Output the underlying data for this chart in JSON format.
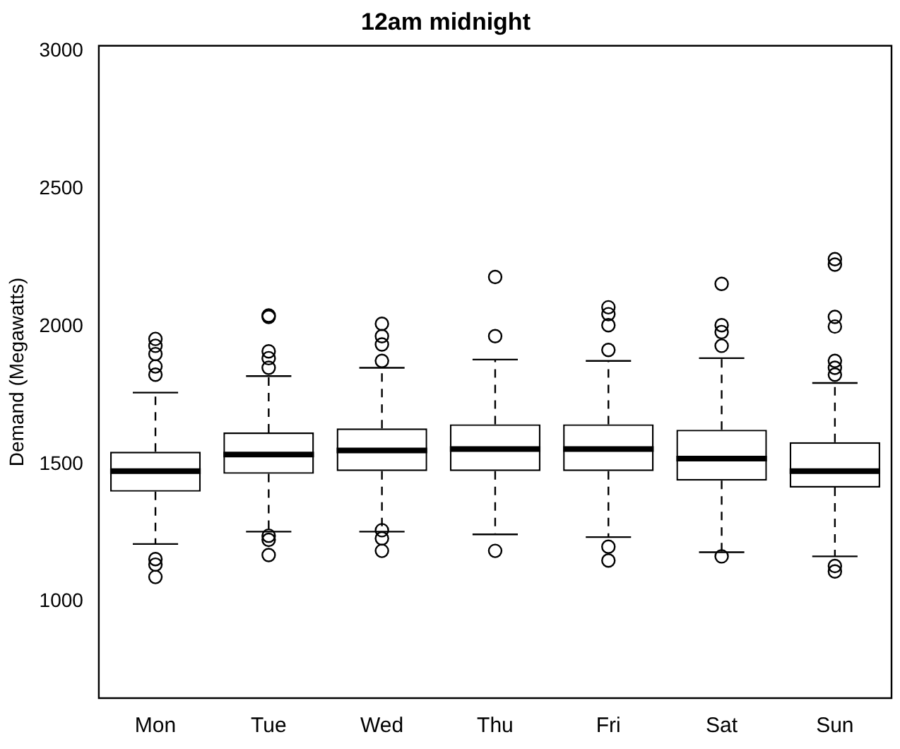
{
  "chart_data": {
    "type": "box",
    "title": "12am midnight",
    "ylabel": "Demand (Megawatts)",
    "categories": [
      "Mon",
      "Tue",
      "Wed",
      "Thu",
      "Fri",
      "Sat",
      "Sun"
    ],
    "ylim": [
      650,
      3020
    ],
    "yticks": [
      1000,
      1500,
      2000,
      2500,
      3000
    ],
    "grid": false,
    "legend": false,
    "color": "#000000",
    "boxes": [
      {
        "low": 1210,
        "q1": 1400,
        "median": 1475,
        "q3": 1545,
        "high": 1760,
        "outliers": [
          1955,
          1930,
          1900,
          1855,
          1825,
          1155,
          1135,
          1090
        ]
      },
      {
        "low": 1255,
        "q1": 1465,
        "median": 1535,
        "q3": 1615,
        "high": 1820,
        "outliers": [
          2040,
          2035,
          1910,
          1885,
          1850,
          1240,
          1225,
          1170
        ]
      },
      {
        "low": 1255,
        "q1": 1475,
        "median": 1550,
        "q3": 1630,
        "high": 1850,
        "outliers": [
          2010,
          1965,
          1935,
          1875,
          1260,
          1230,
          1185
        ]
      },
      {
        "low": 1245,
        "q1": 1475,
        "median": 1555,
        "q3": 1645,
        "high": 1880,
        "outliers": [
          2180,
          1965,
          1185
        ]
      },
      {
        "low": 1235,
        "q1": 1475,
        "median": 1555,
        "q3": 1645,
        "high": 1875,
        "outliers": [
          2070,
          2045,
          2005,
          1915,
          1200,
          1150
        ]
      },
      {
        "low": 1180,
        "q1": 1440,
        "median": 1520,
        "q3": 1625,
        "high": 1885,
        "outliers": [
          2155,
          2005,
          1980,
          1930,
          1165
        ]
      },
      {
        "low": 1165,
        "q1": 1415,
        "median": 1475,
        "q3": 1580,
        "high": 1795,
        "outliers": [
          2245,
          2225,
          2035,
          2000,
          1875,
          1850,
          1825,
          1130,
          1110
        ]
      }
    ]
  }
}
